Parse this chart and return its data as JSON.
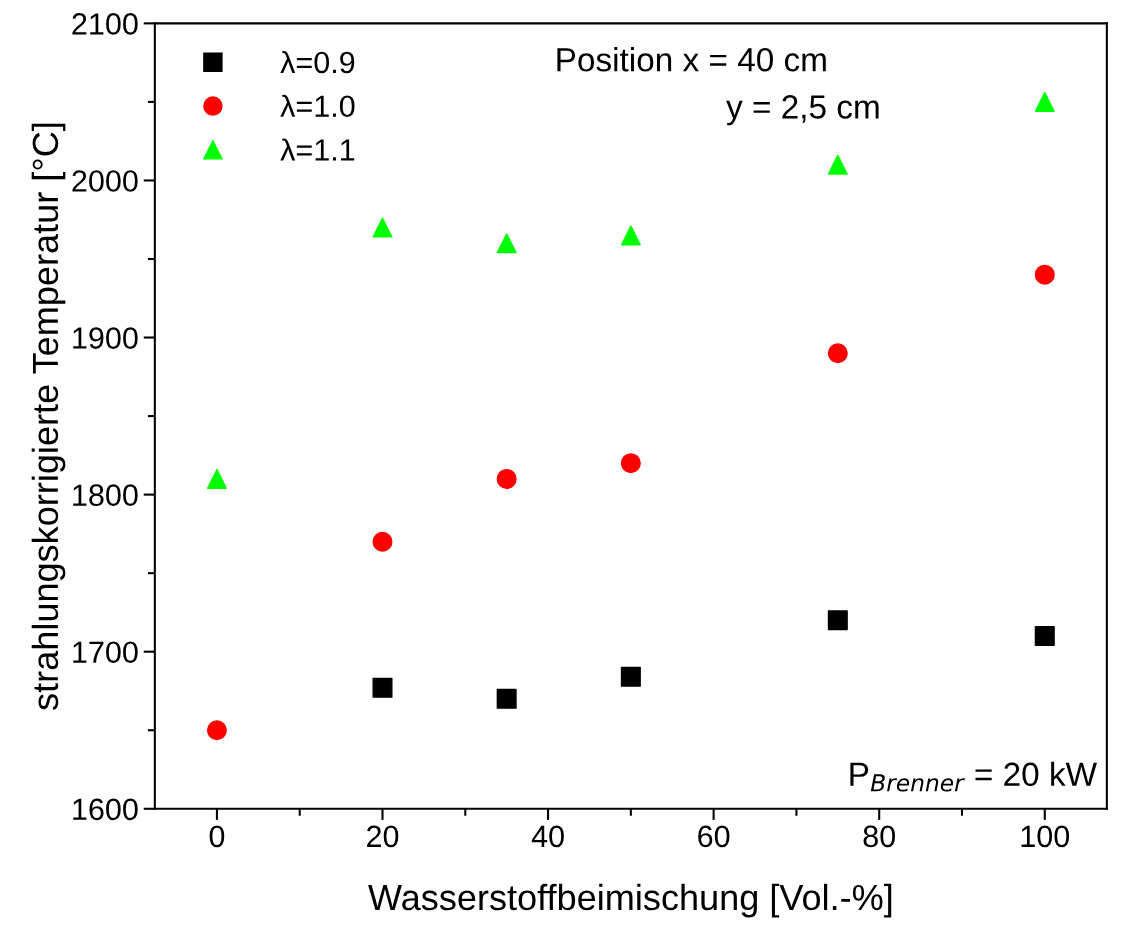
{
  "chart_data": {
    "type": "scatter",
    "xlabel": "Wasserstoffbeimischung [Vol.-%]",
    "ylabel": "strahlungskorrigierte Temperatur [°C]",
    "x": [
      0,
      20,
      35,
      50,
      75,
      100
    ],
    "series": [
      {
        "name": "λ=0.9",
        "color": "#000000",
        "marker": "square",
        "values": [
          null,
          1677,
          1670,
          1684,
          1720,
          1710
        ]
      },
      {
        "name": "λ=1.0",
        "color": "#ff0000",
        "marker": "circle",
        "values": [
          1650,
          1770,
          1810,
          1820,
          1890,
          1940
        ]
      },
      {
        "name": "λ=1.1",
        "color": "#00ff00",
        "marker": "triangle",
        "values": [
          1810,
          1970,
          1960,
          1965,
          2010,
          2050
        ]
      }
    ],
    "xlim": [
      -7.5,
      107.5
    ],
    "ylim": [
      1600,
      2100
    ],
    "xticks": [
      0,
      20,
      40,
      60,
      80,
      100
    ],
    "yticks": [
      1600,
      1700,
      1800,
      1900,
      2000,
      2100
    ],
    "grid": false,
    "legend": "top left",
    "annotations": [
      "Position x = 40 cm",
      "y = 2,5 cm",
      "P$_{Brenner}$ = 20 kW"
    ]
  }
}
